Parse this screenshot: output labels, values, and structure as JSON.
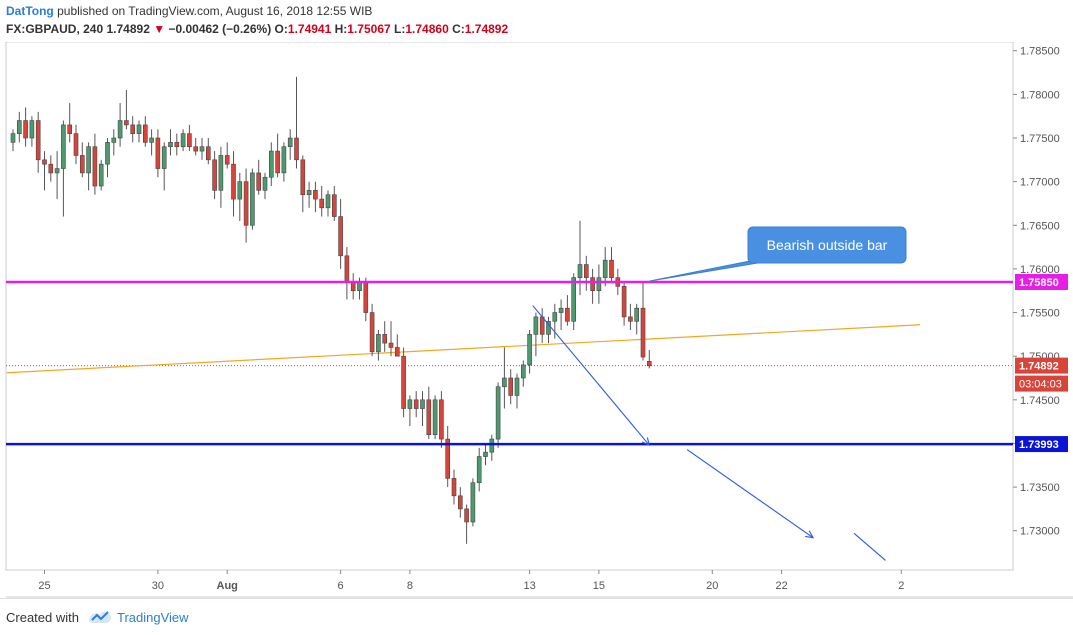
{
  "header": {
    "author": "DatTong",
    "published": "published on TradingView.com, August 16, 2018 12:55 WIB",
    "symbol": "FX:GBPAUD, 240",
    "last": "1.74892",
    "change_arrow": "▼",
    "change": "−0.00462 (−0.26%)",
    "o_label": "O:",
    "o_value": "1.74941",
    "h_label": "H:",
    "h_value": "1.75067",
    "l_label": "L:",
    "l_value": "1.74860",
    "c_label": "C:",
    "c_value": "1.74892"
  },
  "footer": {
    "created_with": "Created with",
    "brand": "TradingView",
    "logo_icon": "tradingview-logo-icon"
  },
  "colors": {
    "bull": "#4d9a6f",
    "bear": "#d8443a",
    "magenta": "#e61ee6",
    "blue": "#0a14d2",
    "orange": "#f5a623",
    "arrow": "#2a5ae6",
    "callout": "#4a90e2"
  },
  "chart_data": {
    "type": "candlestick",
    "symbol": "FX:GBPAUD",
    "interval": "240",
    "ylim": [
      1.7255,
      1.786
    ],
    "y_ticks": [
      "1.78500",
      "1.78000",
      "1.77500",
      "1.77000",
      "1.76500",
      "1.76000",
      "1.75500",
      "1.75000",
      "1.74500",
      "1.74000",
      "1.73500",
      "1.73000"
    ],
    "x_ticks": [
      {
        "label": "25",
        "index": 5
      },
      {
        "label": "30",
        "index": 23
      },
      {
        "label": "Aug",
        "index": 34
      },
      {
        "label": "6",
        "index": 52
      },
      {
        "label": "8",
        "index": 63
      },
      {
        "label": "13",
        "index": 82
      },
      {
        "label": "15",
        "index": 93
      },
      {
        "label": "20",
        "index": 111
      },
      {
        "label": "22",
        "index": 122
      },
      {
        "label": "2",
        "index": 141
      }
    ],
    "candles": [
      [
        1.7745,
        1.776,
        1.7735,
        1.7755
      ],
      [
        1.7755,
        1.778,
        1.7745,
        1.777
      ],
      [
        1.777,
        1.7785,
        1.774,
        1.775
      ],
      [
        1.775,
        1.7775,
        1.774,
        1.777
      ],
      [
        1.777,
        1.778,
        1.771,
        1.7725
      ],
      [
        1.7725,
        1.7735,
        1.769,
        1.772
      ],
      [
        1.772,
        1.773,
        1.77,
        1.771
      ],
      [
        1.771,
        1.7735,
        1.768,
        1.7715
      ],
      [
        1.7715,
        1.777,
        1.766,
        1.7765
      ],
      [
        1.7765,
        1.779,
        1.7745,
        1.7755
      ],
      [
        1.7755,
        1.7765,
        1.772,
        1.773
      ],
      [
        1.773,
        1.7745,
        1.7705,
        1.771
      ],
      [
        1.771,
        1.7745,
        1.769,
        1.774
      ],
      [
        1.774,
        1.7755,
        1.7685,
        1.7695
      ],
      [
        1.7695,
        1.7725,
        1.769,
        1.772
      ],
      [
        1.772,
        1.775,
        1.7705,
        1.7745
      ],
      [
        1.7745,
        1.776,
        1.773,
        1.775
      ],
      [
        1.775,
        1.779,
        1.774,
        1.777
      ],
      [
        1.777,
        1.7805,
        1.776,
        1.7765
      ],
      [
        1.7765,
        1.7775,
        1.7745,
        1.7755
      ],
      [
        1.7755,
        1.777,
        1.7745,
        1.7765
      ],
      [
        1.7765,
        1.7775,
        1.774,
        1.7745
      ],
      [
        1.7745,
        1.776,
        1.773,
        1.775
      ],
      [
        1.775,
        1.776,
        1.7705,
        1.7715
      ],
      [
        1.7715,
        1.7745,
        1.769,
        1.774
      ],
      [
        1.774,
        1.776,
        1.773,
        1.7745
      ],
      [
        1.7745,
        1.7755,
        1.773,
        1.774
      ],
      [
        1.774,
        1.776,
        1.7735,
        1.7755
      ],
      [
        1.7755,
        1.7765,
        1.7735,
        1.774
      ],
      [
        1.774,
        1.775,
        1.773,
        1.7735
      ],
      [
        1.7735,
        1.775,
        1.7725,
        1.774
      ],
      [
        1.774,
        1.775,
        1.772,
        1.7725
      ],
      [
        1.7725,
        1.7735,
        1.768,
        1.769
      ],
      [
        1.769,
        1.774,
        1.767,
        1.773
      ],
      [
        1.773,
        1.7745,
        1.7715,
        1.772
      ],
      [
        1.772,
        1.7735,
        1.766,
        1.768
      ],
      [
        1.768,
        1.771,
        1.7655,
        1.77
      ],
      [
        1.77,
        1.7715,
        1.763,
        1.765
      ],
      [
        1.765,
        1.7715,
        1.7645,
        1.771
      ],
      [
        1.771,
        1.7725,
        1.7685,
        1.769
      ],
      [
        1.769,
        1.771,
        1.768,
        1.7705
      ],
      [
        1.7705,
        1.7745,
        1.7695,
        1.7735
      ],
      [
        1.7735,
        1.7755,
        1.7705,
        1.771
      ],
      [
        1.771,
        1.7745,
        1.77,
        1.774
      ],
      [
        1.774,
        1.776,
        1.7725,
        1.775
      ],
      [
        1.775,
        1.782,
        1.7715,
        1.7725
      ],
      [
        1.7725,
        1.773,
        1.7665,
        1.7685
      ],
      [
        1.7685,
        1.77,
        1.767,
        1.769
      ],
      [
        1.769,
        1.77,
        1.7665,
        1.768
      ],
      [
        1.768,
        1.7695,
        1.766,
        1.767
      ],
      [
        1.767,
        1.769,
        1.766,
        1.7685
      ],
      [
        1.7685,
        1.7695,
        1.7655,
        1.766
      ],
      [
        1.766,
        1.768,
        1.76,
        1.7615
      ],
      [
        1.7615,
        1.7625,
        1.7565,
        1.7585
      ],
      [
        1.7585,
        1.7595,
        1.7565,
        1.7575
      ],
      [
        1.7575,
        1.759,
        1.7565,
        1.7585
      ],
      [
        1.7585,
        1.759,
        1.754,
        1.755
      ],
      [
        1.755,
        1.756,
        1.75,
        1.7505
      ],
      [
        1.7505,
        1.753,
        1.7495,
        1.7525
      ],
      [
        1.7525,
        1.754,
        1.7505,
        1.7515
      ],
      [
        1.7515,
        1.754,
        1.75,
        1.751
      ],
      [
        1.751,
        1.7525,
        1.75,
        1.75
      ],
      [
        1.75,
        1.751,
        1.743,
        1.744
      ],
      [
        1.744,
        1.7455,
        1.742,
        1.745
      ],
      [
        1.745,
        1.746,
        1.743,
        1.744
      ],
      [
        1.744,
        1.746,
        1.742,
        1.745
      ],
      [
        1.745,
        1.7465,
        1.7405,
        1.741
      ],
      [
        1.741,
        1.7455,
        1.7405,
        1.745
      ],
      [
        1.745,
        1.746,
        1.7395,
        1.7405
      ],
      [
        1.7405,
        1.742,
        1.735,
        1.736
      ],
      [
        1.736,
        1.737,
        1.733,
        1.734
      ],
      [
        1.734,
        1.735,
        1.7315,
        1.7325
      ],
      [
        1.7325,
        1.733,
        1.7285,
        1.731
      ],
      [
        1.731,
        1.736,
        1.7305,
        1.7355
      ],
      [
        1.7355,
        1.7395,
        1.7345,
        1.7385
      ],
      [
        1.7385,
        1.74,
        1.7375,
        1.739
      ],
      [
        1.739,
        1.741,
        1.738,
        1.7405
      ],
      [
        1.7405,
        1.747,
        1.7395,
        1.7465
      ],
      [
        1.7465,
        1.751,
        1.744,
        1.7475
      ],
      [
        1.7475,
        1.7485,
        1.7445,
        1.7455
      ],
      [
        1.7455,
        1.748,
        1.744,
        1.7475
      ],
      [
        1.7475,
        1.7495,
        1.7465,
        1.749
      ],
      [
        1.749,
        1.753,
        1.748,
        1.7525
      ],
      [
        1.7525,
        1.755,
        1.75,
        1.7545
      ],
      [
        1.7545,
        1.7555,
        1.7515,
        1.7525
      ],
      [
        1.7525,
        1.7545,
        1.7515,
        1.754
      ],
      [
        1.754,
        1.756,
        1.752,
        1.755
      ],
      [
        1.755,
        1.7565,
        1.753,
        1.7555
      ],
      [
        1.7555,
        1.757,
        1.7535,
        1.754
      ],
      [
        1.754,
        1.7595,
        1.753,
        1.759
      ],
      [
        1.759,
        1.7655,
        1.757,
        1.7605
      ],
      [
        1.7605,
        1.7615,
        1.7575,
        1.759
      ],
      [
        1.759,
        1.76,
        1.756,
        1.7575
      ],
      [
        1.7575,
        1.7605,
        1.756,
        1.759
      ],
      [
        1.759,
        1.7625,
        1.758,
        1.761
      ],
      [
        1.761,
        1.7625,
        1.7585,
        1.759
      ],
      [
        1.759,
        1.76,
        1.757,
        1.758
      ],
      [
        1.758,
        1.7585,
        1.7535,
        1.7545
      ],
      [
        1.7545,
        1.756,
        1.753,
        1.754
      ],
      [
        1.754,
        1.756,
        1.7525,
        1.7555
      ],
      [
        1.7555,
        1.7586,
        1.7495,
        1.7499
      ],
      [
        1.7494,
        1.7507,
        1.7486,
        1.7489
      ]
    ],
    "annotations": {
      "resistance": {
        "price": 1.7585,
        "label": "1.75850"
      },
      "support": {
        "price": 1.73993,
        "label": "1.73993"
      },
      "last_price": {
        "price": 1.74892,
        "label": "1.74892"
      },
      "countdown": "03:04:03",
      "trendline": {
        "from": {
          "i": -1,
          "price": 1.7481
        },
        "to": {
          "i": 144,
          "price": 1.7536
        }
      },
      "arrows": [
        {
          "from": {
            "i": 82.5,
            "price": 1.7558
          },
          "to": {
            "i": 101,
            "price": 1.7398
          }
        },
        {
          "from": {
            "i": 107,
            "price": 1.7393
          },
          "to": {
            "i": 127,
            "price": 1.7292
          }
        }
      ],
      "partial_line": {
        "from": {
          "i": 133.5,
          "price": 1.7297
        },
        "to": {
          "i": 138.5,
          "price": 1.7266
        }
      },
      "callout": {
        "text": "Bearish outside bar",
        "pointer": {
          "i": 101,
          "price": 1.7586
        }
      }
    }
  }
}
